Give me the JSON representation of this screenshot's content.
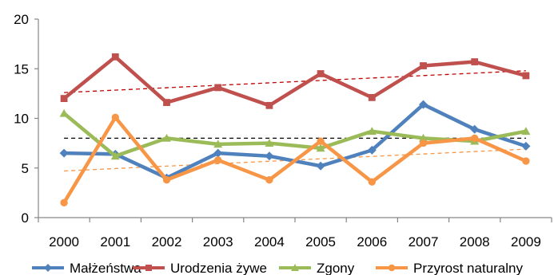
{
  "chart_data": {
    "type": "line",
    "x": [
      "2000",
      "2001",
      "2002",
      "2003",
      "2004",
      "2005",
      "2006",
      "2007",
      "2008",
      "2009"
    ],
    "ylim": [
      0,
      20
    ],
    "yticks": [
      "0",
      "5",
      "10",
      "15",
      "20"
    ],
    "grid": false,
    "legend_position": "bottom",
    "series": [
      {
        "name": "Małżeństwa",
        "color": "#4f81bd",
        "marker": "diamond",
        "values": [
          6.5,
          6.4,
          4.0,
          6.5,
          6.2,
          5.2,
          6.8,
          11.4,
          8.9,
          7.2
        ]
      },
      {
        "name": "Urodzenia żywe",
        "color": "#c0504d",
        "marker": "square",
        "values": [
          12.0,
          16.2,
          11.6,
          13.1,
          11.3,
          14.5,
          12.1,
          15.3,
          15.7,
          14.3
        ]
      },
      {
        "name": "Zgony",
        "color": "#9bbb59",
        "marker": "triangle",
        "values": [
          10.5,
          6.2,
          8.0,
          7.4,
          7.5,
          7.0,
          8.7,
          8.0,
          7.7,
          8.7
        ]
      },
      {
        "name": "Przyrost naturalny",
        "color": "#f79646",
        "marker": "circle",
        "values": [
          1.5,
          10.1,
          3.8,
          5.8,
          3.8,
          7.7,
          3.6,
          7.5,
          8.0,
          5.7
        ]
      }
    ],
    "trendlines": [
      {
        "series": "Urodzenia żywe",
        "color": "#c00000",
        "style": "dashed",
        "start": 12.6,
        "end": 14.8
      },
      {
        "series": "Zgony",
        "color": "#000000",
        "style": "dashed",
        "start": 8.0,
        "end": 8.0
      },
      {
        "series": "Przyrost naturalny",
        "color": "#f79646",
        "style": "dashed",
        "start": 4.7,
        "end": 6.9
      }
    ]
  }
}
